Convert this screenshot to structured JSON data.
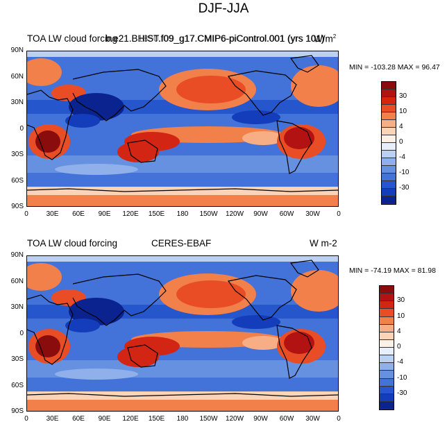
{
  "figure_title": "DJF-JJA",
  "panels": [
    {
      "left_label": "TOA LW cloud forcing",
      "center_label": "b.e21.BHIST.f09_g17.CMIP6-piControl.001 (yrs 101)",
      "overlap_label": "b.e21.B1850.f09_g17.CMIP6-piControl.001 (yrs 101)",
      "units_base": "W/m",
      "units_sup": "2",
      "min_text": "MIN = -103.28",
      "max_text": "MAX =  96.47"
    },
    {
      "left_label": "TOA LW cloud forcing",
      "center_label": "CERES-EBAF",
      "units_text": "W m-2",
      "min_text": "MIN = -74.19",
      "max_text": "MAX =  81.98"
    }
  ],
  "lat_labels": [
    "90N",
    "60N",
    "30N",
    "0",
    "30S",
    "60S",
    "90S"
  ],
  "lon_labels": [
    "0",
    "30E",
    "60E",
    "90E",
    "120E",
    "150E",
    "180",
    "150W",
    "120W",
    "90W",
    "60W",
    "30W",
    "0"
  ],
  "colorbar_labels": [
    "30",
    "10",
    "4",
    "0",
    "-4",
    "-10",
    "-30"
  ],
  "colors": {
    "levels": [
      "#8b0c0c",
      "#b31212",
      "#d32514",
      "#e94d26",
      "#f2804a",
      "#f8ae84",
      "#fbd3b7",
      "#fdf0e4",
      "#e8eefa",
      "#bcd0f2",
      "#8fb0ea",
      "#6691e1",
      "#4373d8",
      "#2656cc",
      "#143dbb",
      "#0a238f"
    ],
    "land": "#000000"
  }
}
